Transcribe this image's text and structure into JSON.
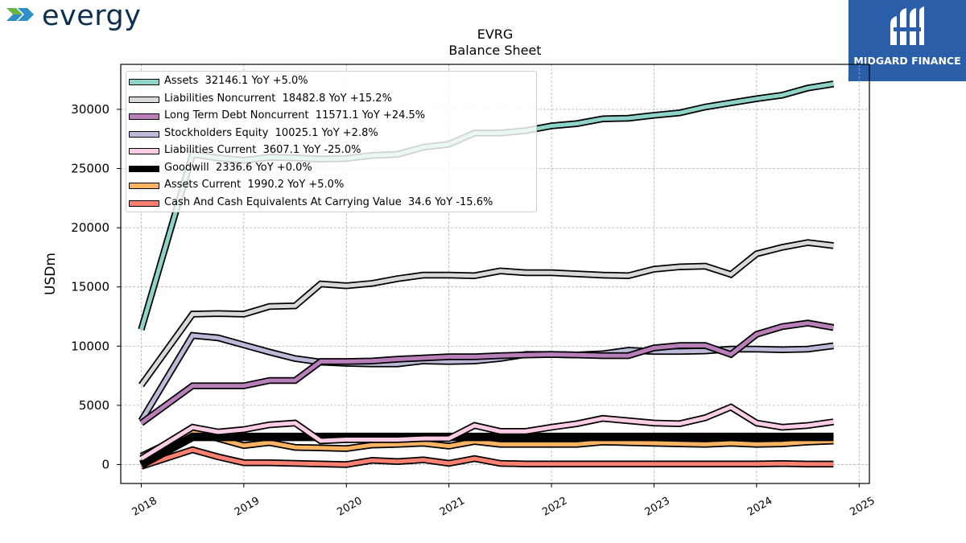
{
  "header": {
    "left_logo_text": "evergy",
    "right_logo_text": "MIDGARD FINANCE",
    "right_logo_bg": "#2b5ea8",
    "left_logo_colors": [
      "#6bb544",
      "#2d8ec8",
      "#0c2f4f"
    ]
  },
  "chart_data": {
    "type": "line",
    "title": "EVRG",
    "subtitle": "Balance  Sheet",
    "xlabel": "",
    "ylabel": "USDm",
    "xlim": [
      2017.8,
      2025.1
    ],
    "ylim": [
      -1600,
      33800
    ],
    "xticks": [
      "2018",
      "2019",
      "2020",
      "2021",
      "2022",
      "2023",
      "2024",
      "2025"
    ],
    "yticks": [
      "0",
      "5000",
      "10000",
      "15000",
      "20000",
      "25000",
      "30000"
    ],
    "grid": true,
    "legend_position": "top-left",
    "x": [
      2018.0,
      2018.5,
      2018.75,
      2019.0,
      2019.25,
      2019.5,
      2019.75,
      2020.0,
      2020.25,
      2020.5,
      2020.75,
      2021.0,
      2021.25,
      2021.5,
      2021.75,
      2022.0,
      2022.25,
      2022.5,
      2022.75,
      2023.0,
      2023.25,
      2023.5,
      2023.75,
      2024.0,
      2024.25,
      2024.5,
      2024.75
    ],
    "series": [
      {
        "name": "Assets",
        "legend": "Assets  32146.1 YoY +5.0%",
        "color": "#8dd3c7",
        "values": [
          11400,
          26200,
          25900,
          25700,
          25950,
          25900,
          25800,
          25850,
          26100,
          26200,
          26800,
          27050,
          28000,
          28000,
          28200,
          28600,
          28800,
          29200,
          29250,
          29500,
          29700,
          30200,
          30550,
          30900,
          31200,
          31800,
          32146
        ]
      },
      {
        "name": "Liabilities Noncurrent",
        "legend": "Liabilities Noncurrent  18482.8 YoY +15.2%",
        "color": "#d9d9d9",
        "values": [
          6700,
          12700,
          12750,
          12700,
          13350,
          13400,
          15250,
          15100,
          15300,
          15700,
          16000,
          16000,
          15950,
          16350,
          16200,
          16200,
          16100,
          16000,
          15950,
          16500,
          16700,
          16750,
          16050,
          17800,
          18350,
          18750,
          18483
        ]
      },
      {
        "name": "Long Term Debt Noncurrent",
        "legend": "Long Term Debt Noncurrent  11571.1 YoY +24.5%",
        "color": "#b87fba",
        "values": [
          3500,
          6650,
          6650,
          6650,
          7100,
          7100,
          8700,
          8700,
          8750,
          8900,
          9000,
          9100,
          9100,
          9200,
          9250,
          9300,
          9250,
          9200,
          9200,
          9850,
          10050,
          10050,
          9300,
          11000,
          11650,
          11950,
          11571
        ]
      },
      {
        "name": "Stockholders Equity",
        "legend": "Stockholders Equity  10025.1 YoY +2.8%",
        "color": "#bcb9d9",
        "values": [
          3700,
          10900,
          10700,
          10100,
          9500,
          8950,
          8650,
          8550,
          8500,
          8500,
          8750,
          8700,
          8750,
          8950,
          9300,
          9300,
          9250,
          9350,
          9650,
          9550,
          9550,
          9600,
          9750,
          9750,
          9700,
          9750,
          10025
        ]
      },
      {
        "name": "Liabilities Current",
        "legend": "Liabilities Current  3607.1 YoY -25.0%",
        "color": "#fccde5",
        "values": [
          500,
          3150,
          2750,
          2950,
          3350,
          3500,
          2000,
          2100,
          2100,
          2100,
          2200,
          2200,
          3300,
          2800,
          2800,
          3150,
          3450,
          3900,
          3700,
          3500,
          3450,
          3950,
          4850,
          3500,
          3150,
          3300,
          3607
        ]
      },
      {
        "name": "Goodwill",
        "legend": "Goodwill  2336.6 YoY +0.0%",
        "color": "#000000",
        "values": [
          0,
          2337,
          2337,
          2337,
          2337,
          2337,
          2337,
          2337,
          2337,
          2337,
          2337,
          2337,
          2337,
          2337,
          2337,
          2337,
          2337,
          2337,
          2337,
          2337,
          2337,
          2337,
          2337,
          2337,
          2337,
          2337,
          2337
        ]
      },
      {
        "name": "Assets Current",
        "legend": "Assets Current  1990.2 YoY +5.0%",
        "color": "#fdb462",
        "values": [
          700,
          2800,
          2200,
          1600,
          1850,
          1450,
          1400,
          1350,
          1650,
          1700,
          1800,
          1550,
          1950,
          1700,
          1700,
          1700,
          1700,
          1900,
          1850,
          1800,
          1750,
          1700,
          1800,
          1700,
          1750,
          1900,
          1990
        ]
      },
      {
        "name": "Cash And Cash Equivalents At Carrying Value",
        "legend": "Cash And Cash Equivalents At Carrying Value  34.6 YoY -15.6%",
        "color": "#fb8072",
        "values": [
          -150,
          1250,
          650,
          150,
          150,
          100,
          50,
          0,
          350,
          250,
          400,
          100,
          500,
          100,
          50,
          50,
          50,
          50,
          50,
          50,
          50,
          50,
          50,
          50,
          80,
          40,
          35
        ]
      }
    ]
  }
}
